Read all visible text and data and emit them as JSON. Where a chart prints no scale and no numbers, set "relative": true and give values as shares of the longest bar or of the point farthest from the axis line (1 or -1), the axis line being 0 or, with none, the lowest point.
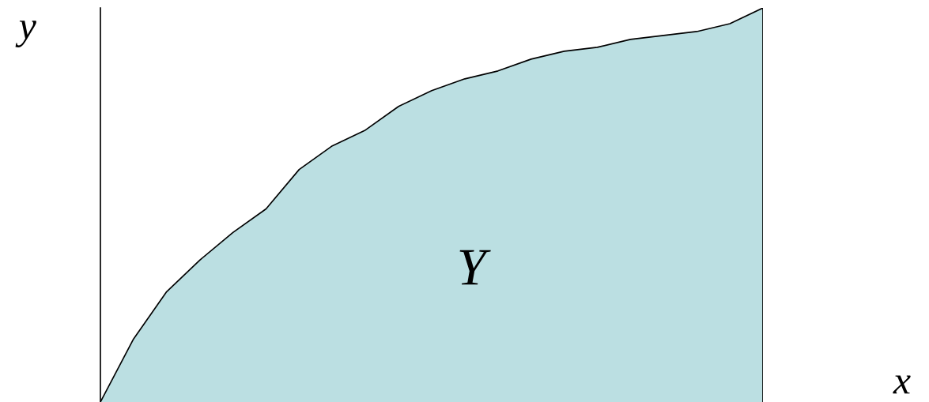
{
  "chart_data": {
    "type": "area",
    "relative": true,
    "xlabel": "x",
    "ylabel": "y",
    "annotations": [
      "Y"
    ],
    "categories": [
      null,
      null,
      null,
      null,
      null,
      null,
      null,
      null,
      null,
      null,
      null,
      null,
      null,
      null,
      null,
      null,
      null,
      null,
      null,
      null,
      null
    ],
    "series": [
      {
        "color": "#bbdfe2",
        "values": [
          0,
          0.16,
          0.28,
          0.36,
          0.43,
          0.49,
          0.59,
          0.65,
          0.69,
          0.75,
          0.79,
          0.82,
          0.84,
          0.87,
          0.89,
          0.9,
          0.92,
          0.93,
          0.94,
          0.96,
          1.0
        ]
      }
    ],
    "grid": false,
    "legend": false
  }
}
